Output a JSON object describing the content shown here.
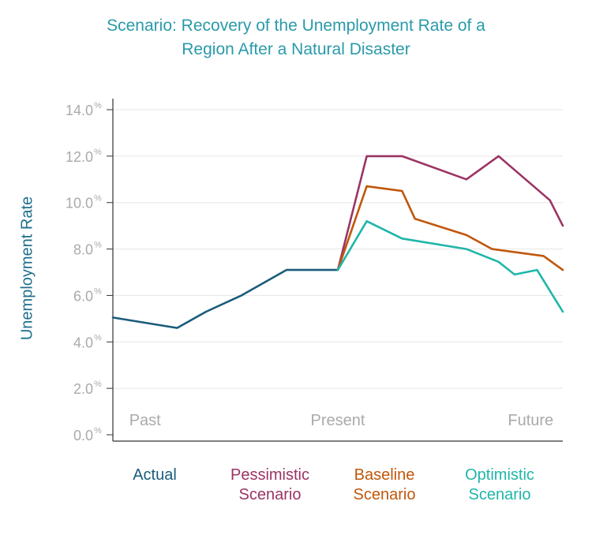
{
  "chart_data": {
    "type": "line",
    "title": [
      "Scenario: Recovery of the Unemployment Rate of a",
      "Region After a Natural Disaster"
    ],
    "ylabel": "Unemployment Rate",
    "ylim": [
      0,
      14
    ],
    "yticks": [
      {
        "value": 0,
        "label": "0.0",
        "suffix": "%"
      },
      {
        "value": 2,
        "label": "2.0",
        "suffix": "%"
      },
      {
        "value": 4,
        "label": "4.0",
        "suffix": "%"
      },
      {
        "value": 6,
        "label": "6.0",
        "suffix": "%"
      },
      {
        "value": 8,
        "label": "8.0",
        "suffix": "%"
      },
      {
        "value": 10,
        "label": "10.0",
        "suffix": "%"
      },
      {
        "value": 12,
        "label": "12.0",
        "suffix": "%"
      },
      {
        "value": 14,
        "label": "14.0",
        "suffix": "%"
      }
    ],
    "xlim": [
      0,
      14
    ],
    "period_labels": [
      {
        "text": "Past",
        "x": 1
      },
      {
        "text": "Present",
        "x": 7
      },
      {
        "text": "Future",
        "x": 13
      }
    ],
    "series": [
      {
        "name": "Actual",
        "color": "#1a5c7a",
        "x": [
          0,
          2,
          2.9,
          4,
          5.4,
          7
        ],
        "y": [
          5.05,
          4.6,
          5.3,
          6.0,
          7.1,
          7.1
        ]
      },
      {
        "name": "Pessimistic Scenario",
        "color": "#9b3464",
        "x": [
          7,
          7.9,
          9,
          11,
          12,
          13.6,
          14
        ],
        "y": [
          7.1,
          12.0,
          12.0,
          11.0,
          12.0,
          10.1,
          9.0
        ]
      },
      {
        "name": "Baseline Scenario",
        "color": "#c0570c",
        "x": [
          7,
          7.9,
          9,
          9.4,
          11,
          11.8,
          13.4,
          14
        ],
        "y": [
          7.1,
          10.7,
          10.5,
          9.3,
          8.6,
          8.0,
          7.7,
          7.1
        ]
      },
      {
        "name": "Optimistic Scenario",
        "color": "#1fb6a9",
        "x": [
          7,
          7.9,
          9,
          11,
          12,
          12.5,
          13.2,
          14
        ],
        "y": [
          7.1,
          9.2,
          8.45,
          8.0,
          7.45,
          6.9,
          7.1,
          5.3
        ]
      }
    ],
    "legend": [
      {
        "lines": [
          "Actual"
        ],
        "color": "#1a5c7a"
      },
      {
        "lines": [
          "Pessimistic",
          "Scenario"
        ],
        "color": "#9b3464"
      },
      {
        "lines": [
          "Baseline",
          "Scenario"
        ],
        "color": "#c0570c"
      },
      {
        "lines": [
          "Optimistic",
          "Scenario"
        ],
        "color": "#1fb6a9"
      }
    ]
  }
}
